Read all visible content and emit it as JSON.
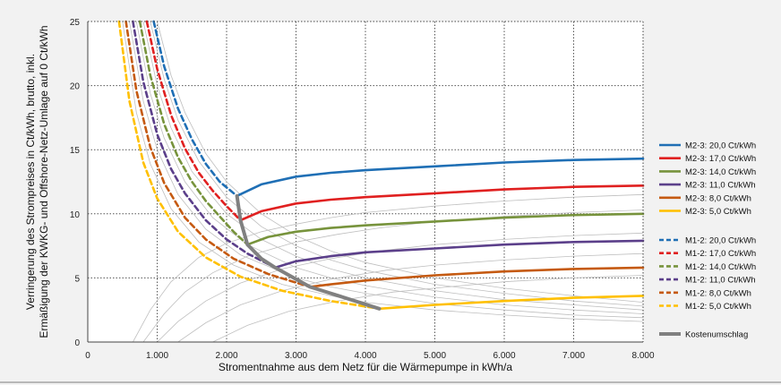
{
  "chart_data": {
    "type": "line",
    "xlabel": "Stromentnahme aus dem Netz für die Wärmepumpe in kWh/a",
    "ylabel_lines": [
      "Verringerung des Strompreises  in Ct/kWh, brutto, inkl.",
      "Ermäßigung der KWKG- und Offshore-Netz-Umlage auf 0 Ct/kWh"
    ],
    "xlim": [
      0,
      8000
    ],
    "ylim": [
      0,
      25
    ],
    "x_ticks": [
      0,
      1000,
      2000,
      3000,
      4000,
      5000,
      6000,
      7000,
      8000
    ],
    "x_tick_labels": [
      "0",
      "1.000",
      "2.000",
      "3.000",
      "4.000",
      "5.000",
      "6.000",
      "7.000",
      "8.000"
    ],
    "y_ticks": [
      0,
      5,
      10,
      15,
      20,
      25
    ],
    "y_tick_labels": [
      "0",
      "5",
      "10",
      "15",
      "20",
      "25"
    ],
    "grid": true,
    "legend_position": "right",
    "series": [
      {
        "name": "M2-3: 20,0 Ct/kWh",
        "color": "#1f6fb5",
        "style": "solid",
        "x": [
          2150,
          2500,
          3000,
          3500,
          4000,
          5000,
          6000,
          7000,
          8000
        ],
        "y": [
          11.4,
          12.3,
          12.9,
          13.2,
          13.4,
          13.7,
          14.0,
          14.2,
          14.3
        ]
      },
      {
        "name": "M2-3: 17,0 Ct/kWh",
        "color": "#e02020",
        "style": "solid",
        "x": [
          2200,
          2500,
          3000,
          3500,
          4000,
          5000,
          6000,
          7000,
          8000
        ],
        "y": [
          9.5,
          10.2,
          10.8,
          11.1,
          11.3,
          11.6,
          11.9,
          12.1,
          12.2
        ]
      },
      {
        "name": "M2-3: 14,0 Ct/kWh",
        "color": "#77933c",
        "style": "solid",
        "x": [
          2300,
          2600,
          3000,
          3500,
          4000,
          5000,
          6000,
          7000,
          8000
        ],
        "y": [
          7.6,
          8.2,
          8.6,
          8.9,
          9.1,
          9.4,
          9.7,
          9.9,
          10.0
        ]
      },
      {
        "name": "M2-3: 11,0 Ct/kWh",
        "color": "#5b3f8a",
        "style": "solid",
        "x": [
          2700,
          3000,
          3500,
          4000,
          5000,
          6000,
          7000,
          8000
        ],
        "y": [
          5.8,
          6.3,
          6.7,
          7.0,
          7.3,
          7.6,
          7.8,
          7.9
        ]
      },
      {
        "name": "M2-3: 8,0 Ct/kWh",
        "color": "#c55a11",
        "style": "solid",
        "x": [
          3200,
          3500,
          4000,
          5000,
          6000,
          7000,
          8000
        ],
        "y": [
          4.3,
          4.5,
          4.8,
          5.2,
          5.5,
          5.7,
          5.8
        ]
      },
      {
        "name": "M2-3: 5,0 Ct/kWh",
        "color": "#ffc000",
        "style": "solid",
        "x": [
          4200,
          5000,
          6000,
          7000,
          8000
        ],
        "y": [
          2.6,
          2.9,
          3.2,
          3.45,
          3.6
        ]
      },
      {
        "name": "M1-2: 20,0 Ct/kWh",
        "color": "#1f6fb5",
        "style": "dashed",
        "x": [
          950,
          1100,
          1300,
          1500,
          1700,
          1900,
          2150
        ],
        "y": [
          25,
          21.5,
          18.2,
          15.8,
          13.9,
          12.5,
          11.4
        ]
      },
      {
        "name": "M1-2: 17,0 Ct/kWh",
        "color": "#e02020",
        "style": "dashed",
        "x": [
          850,
          1000,
          1200,
          1400,
          1600,
          1800,
          2000,
          2200
        ],
        "y": [
          25,
          21.3,
          17.7,
          15.1,
          13.2,
          11.8,
          10.6,
          9.5
        ]
      },
      {
        "name": "M1-2: 14,0 Ct/kWh",
        "color": "#77933c",
        "style": "dashed",
        "x": [
          750,
          900,
          1100,
          1300,
          1500,
          1700,
          1900,
          2100,
          2300
        ],
        "y": [
          25,
          20.8,
          17.0,
          14.4,
          12.5,
          11.0,
          9.8,
          8.6,
          7.6
        ]
      },
      {
        "name": "M1-2: 11,0 Ct/kWh",
        "color": "#5b3f8a",
        "style": "dashed",
        "x": [
          650,
          800,
          1000,
          1200,
          1400,
          1700,
          2000,
          2300,
          2700
        ],
        "y": [
          25,
          20.3,
          16.2,
          13.5,
          11.6,
          9.5,
          8.0,
          6.9,
          5.8
        ]
      },
      {
        "name": "M1-2: 8,0 Ct/kWh",
        "color": "#c55a11",
        "style": "dashed",
        "x": [
          550,
          700,
          900,
          1100,
          1400,
          1700,
          2100,
          2600,
          3200
        ],
        "y": [
          25,
          19.6,
          15.2,
          12.4,
          9.7,
          8.0,
          6.5,
          5.3,
          4.3
        ]
      },
      {
        "name": "M1-2: 5,0 Ct/kWh",
        "color": "#ffc000",
        "style": "dashed",
        "x": [
          450,
          600,
          800,
          1000,
          1300,
          1700,
          2200,
          2800,
          3500,
          4200
        ],
        "y": [
          25,
          18.8,
          14.0,
          11.2,
          8.6,
          6.6,
          5.1,
          4.0,
          3.2,
          2.6
        ]
      },
      {
        "name": "Kostenumschlag",
        "color": "#808080",
        "style": "solid",
        "x": [
          2150,
          2200,
          2300,
          2500,
          2700,
          3000,
          3200,
          3500,
          4200
        ],
        "y": [
          11.4,
          9.5,
          7.6,
          6.5,
          5.8,
          4.9,
          4.3,
          3.8,
          2.6
        ]
      }
    ],
    "background_curves_note": "",
    "background_curves": [
      {
        "x": [
          1000,
          1200,
          1400,
          1700,
          2000,
          2500,
          3000,
          3500,
          4000,
          5000,
          6000,
          7000,
          8000
        ],
        "y": [
          25,
          20.8,
          17.9,
          14.7,
          12.5,
          10.0,
          8.3,
          7.1,
          6.2,
          5.0,
          4.2,
          3.6,
          3.1
        ]
      },
      {
        "x": [
          900,
          1100,
          1300,
          1600,
          2000,
          2500,
          3000,
          3500,
          4000,
          5000,
          6000,
          7000,
          8000
        ],
        "y": [
          25,
          20.5,
          17.3,
          14.1,
          11.3,
          9.0,
          7.5,
          6.4,
          5.6,
          4.5,
          3.8,
          3.2,
          2.8
        ]
      },
      {
        "x": [
          800,
          1000,
          1200,
          1500,
          2000,
          2500,
          3000,
          3500,
          4000,
          5000,
          6000,
          7000,
          8000
        ],
        "y": [
          25,
          20.0,
          16.7,
          13.3,
          10.0,
          8.0,
          6.7,
          5.7,
          5.0,
          4.0,
          3.3,
          2.9,
          2.5
        ]
      },
      {
        "x": [
          700,
          900,
          1100,
          1400,
          1800,
          2300,
          3000,
          3500,
          4000,
          5000,
          6000,
          7000,
          8000
        ],
        "y": [
          25,
          19.4,
          15.9,
          12.5,
          9.7,
          7.6,
          5.8,
          5.0,
          4.4,
          3.5,
          2.9,
          2.5,
          2.2
        ]
      },
      {
        "x": [
          600,
          800,
          1000,
          1300,
          1700,
          2200,
          3000,
          3500,
          4000,
          5000,
          6000,
          7000,
          8000
        ],
        "y": [
          25,
          18.8,
          15.0,
          11.5,
          8.8,
          6.8,
          5.0,
          4.3,
          3.8,
          3.0,
          2.5,
          2.1,
          1.9
        ]
      },
      {
        "x": [
          500,
          700,
          900,
          1200,
          1600,
          2100,
          2800,
          3500,
          4000,
          5000,
          6000,
          7000,
          8000
        ],
        "y": [
          25,
          17.9,
          13.9,
          10.4,
          7.8,
          6.0,
          4.5,
          3.6,
          3.1,
          2.5,
          2.1,
          1.8,
          1.6
        ]
      },
      {
        "x": [
          650,
          900,
          1200,
          1600,
          2000,
          2500,
          3000,
          3500,
          4000,
          5000,
          6000,
          7000,
          8000
        ],
        "y": [
          0,
          2.5,
          4.7,
          6.6,
          7.7,
          8.6,
          9.2,
          9.7,
          10.1,
          10.6,
          11.0,
          11.3,
          11.5
        ]
      },
      {
        "x": [
          800,
          1100,
          1400,
          1800,
          2300,
          3000,
          3600,
          4200,
          5000,
          6000,
          7000,
          8000
        ],
        "y": [
          0,
          2.2,
          3.9,
          5.4,
          6.7,
          7.8,
          8.4,
          8.9,
          9.4,
          9.8,
          10.1,
          10.3
        ]
      },
      {
        "x": [
          1000,
          1300,
          1700,
          2200,
          2800,
          3500,
          4200,
          5000,
          6000,
          7000,
          8000
        ],
        "y": [
          0,
          1.6,
          3.2,
          4.6,
          5.7,
          6.5,
          7.1,
          7.6,
          8.0,
          8.3,
          8.5
        ]
      },
      {
        "x": [
          1300,
          1700,
          2200,
          2800,
          3500,
          4300,
          5000,
          6000,
          7000,
          8000
        ],
        "y": [
          0,
          1.5,
          2.9,
          4.0,
          4.9,
          5.6,
          6.0,
          6.4,
          6.7,
          6.9
        ]
      },
      {
        "x": [
          1800,
          2300,
          2900,
          3600,
          4400,
          5200,
          6000,
          7000,
          8000
        ],
        "y": [
          0,
          1.3,
          2.4,
          3.2,
          3.9,
          4.3,
          4.7,
          5.0,
          5.2
        ]
      }
    ]
  }
}
